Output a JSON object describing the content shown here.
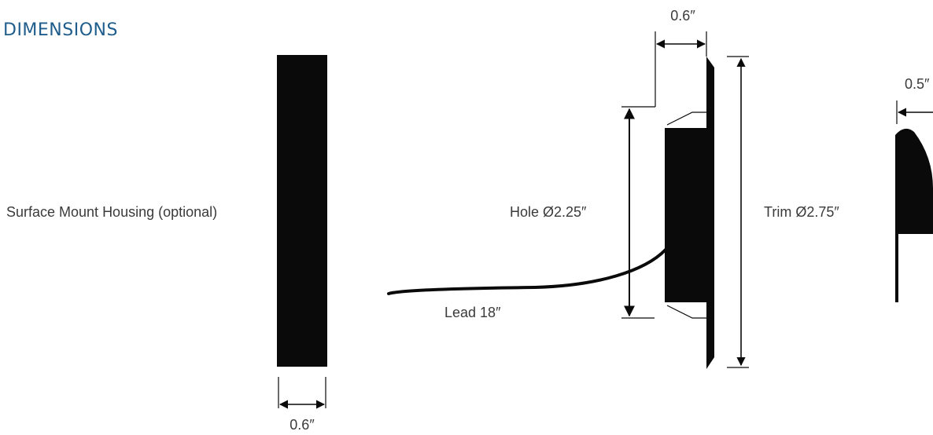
{
  "title": "DIMENSIONS",
  "colors": {
    "title": "#1f5d8c",
    "ink": "#0a0a0a",
    "label": "#3a3a3a"
  },
  "labels": {
    "housing": "Surface Mount Housing (optional)",
    "housing_width": "0.6″",
    "depth": "0.6″",
    "hole": "Hole Ø2.25″",
    "trim": "Trim Ø2.75″",
    "lead": "Lead 18″",
    "side_depth": "0.5″"
  }
}
